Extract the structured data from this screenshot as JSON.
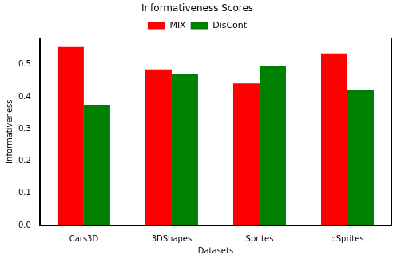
{
  "chart_data": {
    "type": "bar",
    "title": "Informativeness Scores",
    "x_label": "Datasets",
    "y_label": "Informativeness",
    "categories": [
      "Cars3D",
      "3DShapes",
      "Sprites",
      "dSprites"
    ],
    "series": [
      {
        "name": "MIX",
        "color": "#ff0000",
        "values": [
          0.555,
          0.485,
          0.442,
          0.535
        ]
      },
      {
        "name": "DisCont",
        "color": "#008000",
        "values": [
          0.375,
          0.472,
          0.495,
          0.421
        ]
      }
    ],
    "ylim": [
      0,
      0.583
    ],
    "yticks": [
      {
        "value": 0,
        "label": "0.0"
      },
      0.1,
      0.2,
      0.3,
      0.4,
      0.5
    ],
    "grid": false,
    "legend": "top"
  }
}
